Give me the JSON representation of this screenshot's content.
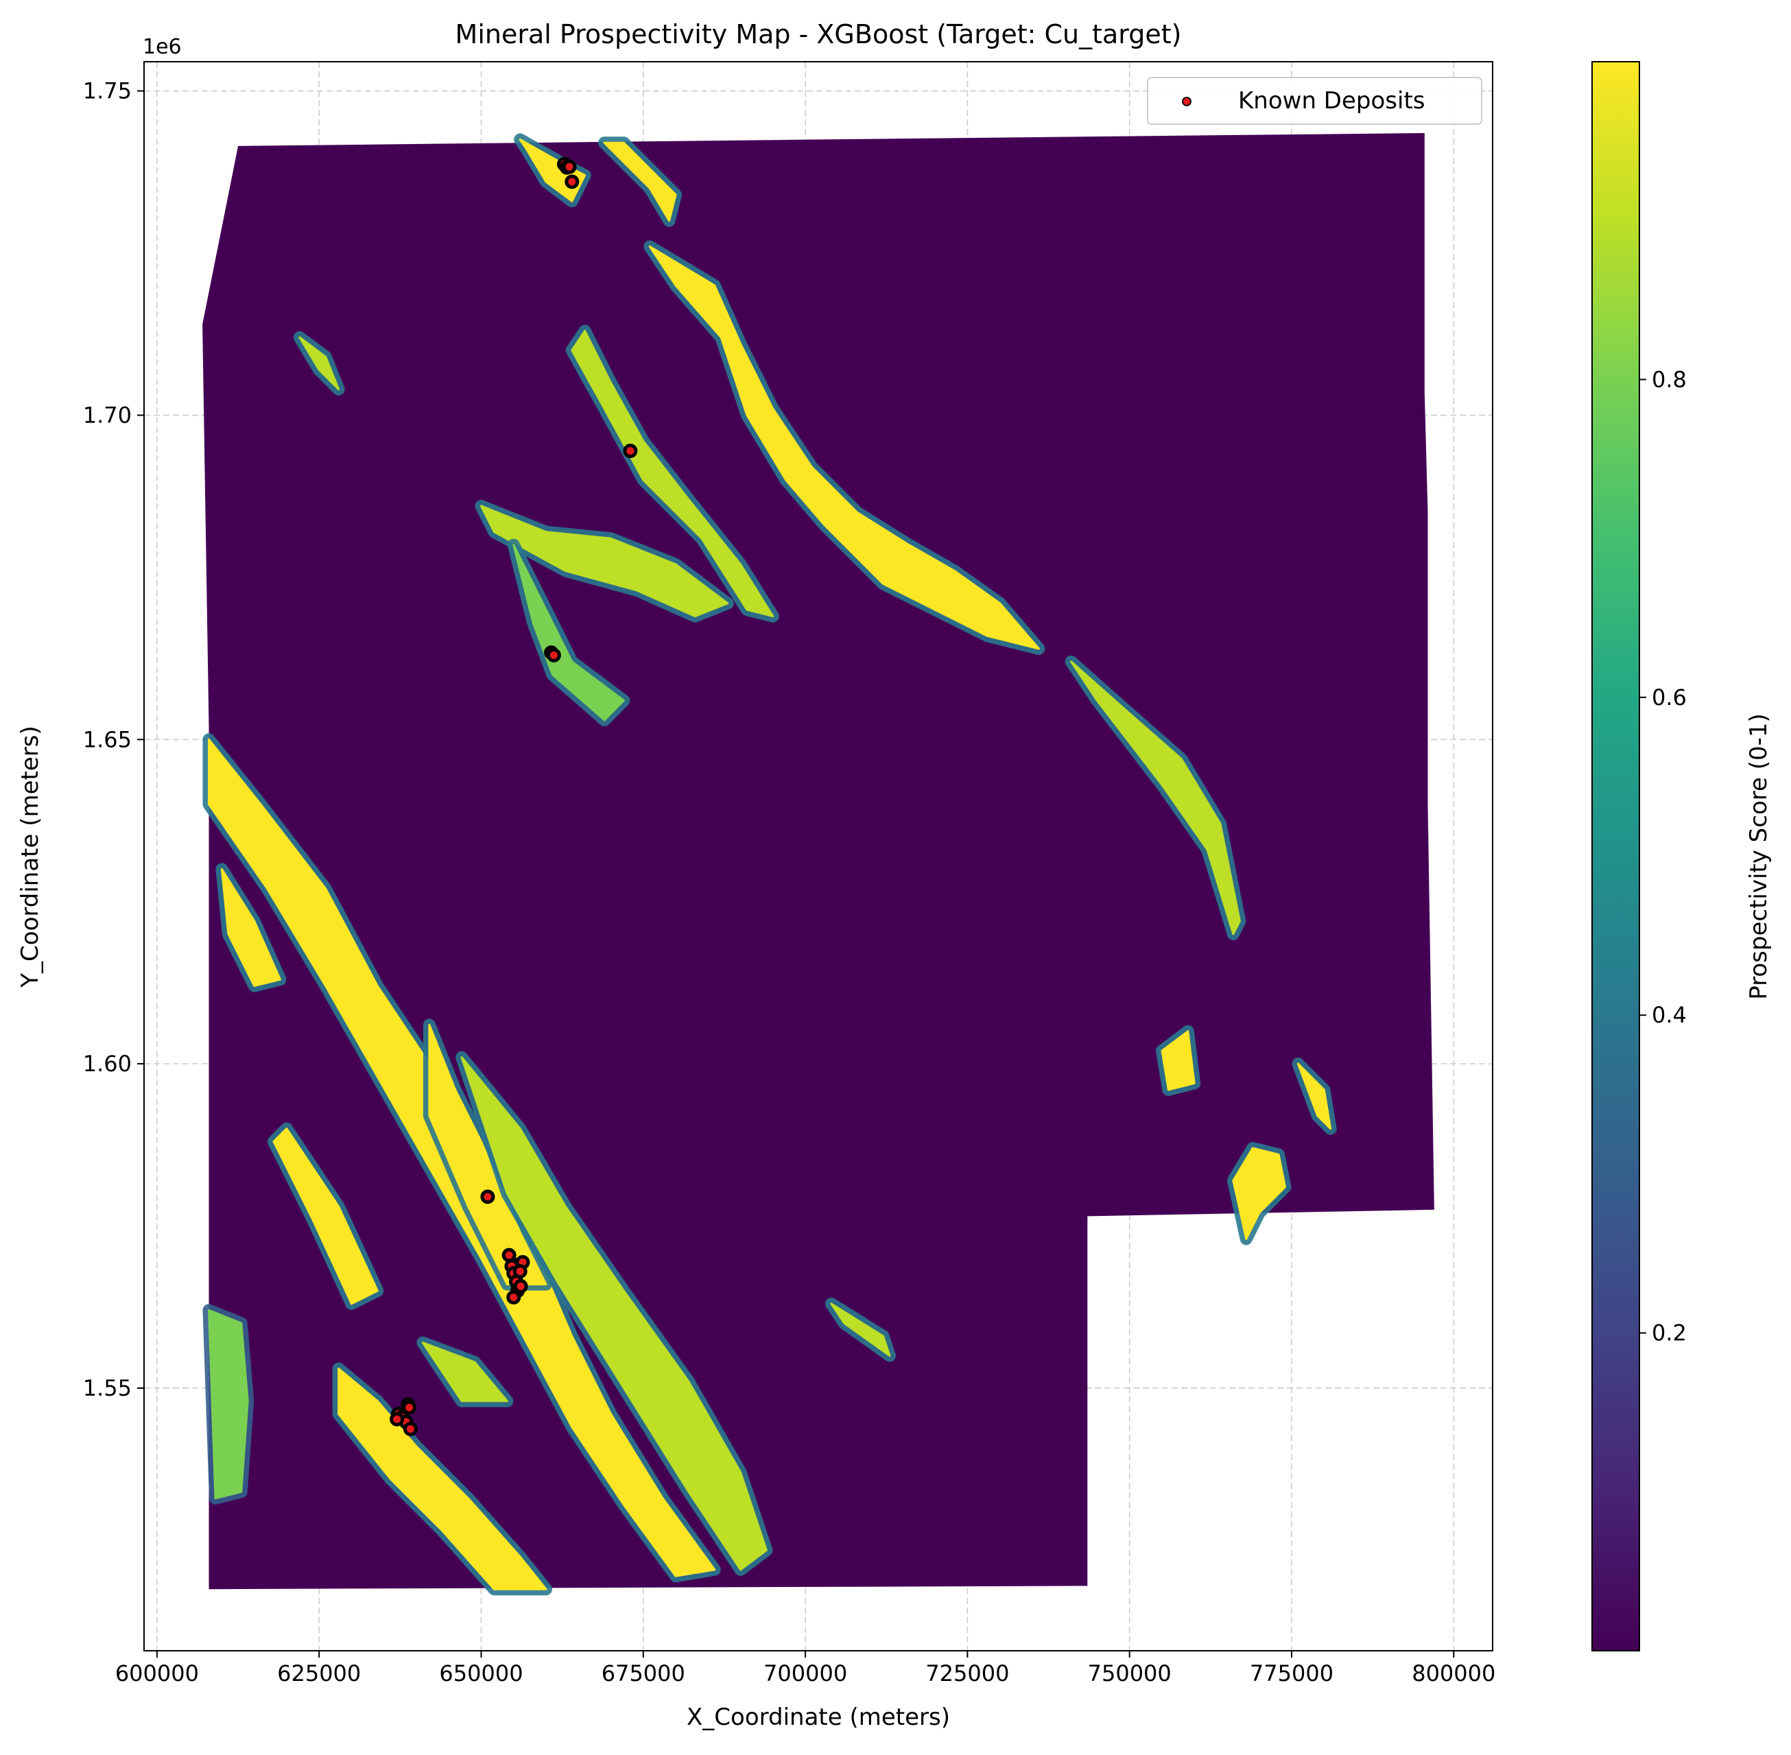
{
  "chart_data": {
    "type": "heatmap",
    "title": "Mineral Prospectivity Map - XGBoost (Target: Cu_target)",
    "xlabel": "X_Coordinate (meters)",
    "ylabel": "Y_Coordinate (meters)",
    "y_offset_label": "1e6",
    "xlim": [
      598000,
      806000
    ],
    "ylim": [
      1.5095,
      1.7545
    ],
    "x_ticks": [
      600000,
      625000,
      650000,
      675000,
      700000,
      725000,
      750000,
      775000,
      800000
    ],
    "x_tick_labels": [
      "600000",
      "625000",
      "650000",
      "675000",
      "700000",
      "725000",
      "750000",
      "775000",
      "800000"
    ],
    "y_ticks": [
      1.55,
      1.6,
      1.65,
      1.7,
      1.75
    ],
    "y_tick_labels": [
      "1.55",
      "1.60",
      "1.65",
      "1.70",
      "1.75"
    ],
    "grid": true,
    "legend": {
      "position": "top-right",
      "entries": [
        "Known Deposits"
      ]
    },
    "colorbar": {
      "label": "Prospectivity Score (0-1)",
      "colormap": "viridis",
      "range": [
        0.0,
        1.0
      ],
      "ticks": [
        0.2,
        0.4,
        0.6,
        0.8
      ],
      "tick_labels": [
        "0.2",
        "0.4",
        "0.6",
        "0.8"
      ]
    },
    "colors": {
      "background_low": "#440154",
      "high": "#fde725",
      "deposit_fill": "#e31a1c",
      "deposit_edge": "#000000",
      "grid": "#cccccc"
    },
    "study_area_outline": [
      [
        612500,
        1.7415
      ],
      [
        701000,
        1.7425
      ],
      [
        795500,
        1.7435
      ],
      [
        795500,
        1.7035
      ],
      [
        796000,
        1.685
      ],
      [
        796000,
        1.64
      ],
      [
        797000,
        1.5775
      ],
      [
        743500,
        1.5765
      ],
      [
        743500,
        1.5195
      ],
      [
        608000,
        1.519
      ],
      [
        608000,
        1.652
      ],
      [
        607000,
        1.714
      ]
    ],
    "high_prospectivity_zones": [
      {
        "score": 0.95,
        "path": [
          [
            656000,
            1.7425
          ],
          [
            664000,
            1.738
          ],
          [
            666000,
            1.737
          ],
          [
            664000,
            1.733
          ],
          [
            660000,
            1.736
          ],
          [
            657000,
            1.741
          ]
        ]
      },
      {
        "score": 0.95,
        "path": [
          [
            669000,
            1.742
          ],
          [
            676000,
            1.735
          ],
          [
            679000,
            1.73
          ],
          [
            680000,
            1.734
          ],
          [
            672000,
            1.742
          ]
        ]
      },
      {
        "score": 0.95,
        "path": [
          [
            676000,
            1.726
          ],
          [
            686000,
            1.72
          ],
          [
            690000,
            1.711
          ],
          [
            695000,
            1.701
          ],
          [
            701000,
            1.692
          ],
          [
            708000,
            1.685
          ],
          [
            716000,
            1.68
          ],
          [
            723000,
            1.676
          ],
          [
            730000,
            1.671
          ],
          [
            736000,
            1.664
          ],
          [
            728000,
            1.666
          ],
          [
            720000,
            1.67
          ],
          [
            712000,
            1.674
          ],
          [
            703000,
            1.683
          ],
          [
            697000,
            1.69
          ],
          [
            691000,
            1.7
          ],
          [
            687000,
            1.712
          ],
          [
            680000,
            1.72
          ]
        ]
      },
      {
        "score": 0.9,
        "path": [
          [
            741000,
            1.662
          ],
          [
            750000,
            1.654
          ],
          [
            758000,
            1.647
          ],
          [
            764000,
            1.637
          ],
          [
            767000,
            1.622
          ],
          [
            766000,
            1.62
          ],
          [
            762000,
            1.633
          ],
          [
            755000,
            1.643
          ],
          [
            745000,
            1.656
          ]
        ]
      },
      {
        "score": 0.9,
        "path": [
          [
            666000,
            1.713
          ],
          [
            670000,
            1.705
          ],
          [
            675000,
            1.696
          ],
          [
            682000,
            1.687
          ],
          [
            690000,
            1.677
          ],
          [
            695000,
            1.669
          ],
          [
            691000,
            1.67
          ],
          [
            684000,
            1.681
          ],
          [
            675000,
            1.69
          ],
          [
            669000,
            1.701
          ],
          [
            664000,
            1.71
          ]
        ]
      },
      {
        "score": 0.85,
        "path": [
          [
            650000,
            1.686
          ],
          [
            660000,
            1.682
          ],
          [
            670000,
            1.681
          ],
          [
            680000,
            1.677
          ],
          [
            688000,
            1.671
          ],
          [
            683000,
            1.669
          ],
          [
            674000,
            1.673
          ],
          [
            663000,
            1.676
          ],
          [
            652000,
            1.682
          ]
        ]
      },
      {
        "score": 0.8,
        "path": [
          [
            655000,
            1.68
          ],
          [
            658000,
            1.668
          ],
          [
            661000,
            1.66
          ],
          [
            669000,
            1.653
          ],
          [
            672000,
            1.656
          ],
          [
            664000,
            1.662
          ],
          [
            659000,
            1.672
          ]
        ]
      },
      {
        "score": 0.95,
        "path": [
          [
            608000,
            1.65
          ],
          [
            616000,
            1.64
          ],
          [
            626000,
            1.627
          ],
          [
            634000,
            1.612
          ],
          [
            642000,
            1.6
          ],
          [
            650000,
            1.586
          ],
          [
            658000,
            1.572
          ],
          [
            664000,
            1.558
          ],
          [
            670000,
            1.546
          ],
          [
            678000,
            1.533
          ],
          [
            686000,
            1.522
          ],
          [
            680000,
            1.521
          ],
          [
            672000,
            1.532
          ],
          [
            664000,
            1.544
          ],
          [
            657000,
            1.557
          ],
          [
            650000,
            1.57
          ],
          [
            642000,
            1.584
          ],
          [
            634000,
            1.598
          ],
          [
            626000,
            1.612
          ],
          [
            617000,
            1.627
          ],
          [
            608000,
            1.64
          ]
        ]
      },
      {
        "score": 0.95,
        "path": [
          [
            642000,
            1.606
          ],
          [
            646000,
            1.596
          ],
          [
            650000,
            1.588
          ],
          [
            656000,
            1.574
          ],
          [
            660000,
            1.566
          ],
          [
            654000,
            1.566
          ],
          [
            648000,
            1.578
          ],
          [
            642000,
            1.592
          ]
        ]
      },
      {
        "score": 0.9,
        "path": [
          [
            647000,
            1.601
          ],
          [
            656000,
            1.59
          ],
          [
            663000,
            1.578
          ],
          [
            672000,
            1.565
          ],
          [
            682000,
            1.551
          ],
          [
            690000,
            1.537
          ],
          [
            694000,
            1.525
          ],
          [
            690000,
            1.522
          ],
          [
            682000,
            1.534
          ],
          [
            672000,
            1.55
          ],
          [
            662000,
            1.566
          ],
          [
            654000,
            1.58
          ]
        ]
      },
      {
        "score": 0.95,
        "path": [
          [
            628000,
            1.553
          ],
          [
            634000,
            1.548
          ],
          [
            640000,
            1.541
          ],
          [
            648000,
            1.533
          ],
          [
            656000,
            1.524
          ],
          [
            660000,
            1.519
          ],
          [
            652000,
            1.519
          ],
          [
            644000,
            1.528
          ],
          [
            636000,
            1.536
          ],
          [
            628000,
            1.546
          ]
        ]
      },
      {
        "score": 0.75,
        "path": [
          [
            608000,
            1.562
          ],
          [
            613000,
            1.56
          ],
          [
            614000,
            1.548
          ],
          [
            613000,
            1.534
          ],
          [
            609000,
            1.533
          ]
        ]
      },
      {
        "score": 0.95,
        "path": [
          [
            610000,
            1.63
          ],
          [
            615000,
            1.622
          ],
          [
            619000,
            1.613
          ],
          [
            615000,
            1.612
          ],
          [
            611000,
            1.62
          ]
        ]
      },
      {
        "score": 0.95,
        "path": [
          [
            620000,
            1.59
          ],
          [
            628000,
            1.578
          ],
          [
            634000,
            1.565
          ],
          [
            630000,
            1.563
          ],
          [
            624000,
            1.576
          ],
          [
            618000,
            1.588
          ]
        ]
      },
      {
        "score": 0.9,
        "path": [
          [
            641000,
            1.557
          ],
          [
            649000,
            1.554
          ],
          [
            654000,
            1.548
          ],
          [
            647000,
            1.548
          ]
        ]
      },
      {
        "score": 0.95,
        "path": [
          [
            766000,
            1.582
          ],
          [
            768000,
            1.573
          ],
          [
            770000,
            1.577
          ],
          [
            774000,
            1.581
          ],
          [
            773000,
            1.586
          ],
          [
            769000,
            1.587
          ]
        ]
      },
      {
        "score": 0.95,
        "path": [
          [
            776000,
            1.6
          ],
          [
            779000,
            1.592
          ],
          [
            781000,
            1.59
          ],
          [
            780000,
            1.596
          ]
        ]
      },
      {
        "score": 0.95,
        "path": [
          [
            755000,
            1.602
          ],
          [
            759000,
            1.605
          ],
          [
            760000,
            1.597
          ],
          [
            756000,
            1.596
          ]
        ]
      },
      {
        "score": 0.9,
        "path": [
          [
            704000,
            1.563
          ],
          [
            712000,
            1.558
          ],
          [
            713000,
            1.555
          ],
          [
            706000,
            1.56
          ]
        ]
      },
      {
        "score": 0.85,
        "path": [
          [
            622000,
            1.712
          ],
          [
            625000,
            1.707
          ],
          [
            628000,
            1.704
          ],
          [
            626000,
            1.709
          ]
        ]
      }
    ],
    "known_deposits": [
      {
        "x": 662800,
        "y": 1.7387
      },
      {
        "x": 663200,
        "y": 1.7382
      },
      {
        "x": 664000,
        "y": 1.736
      },
      {
        "x": 663600,
        "y": 1.7383
      },
      {
        "x": 673000,
        "y": 1.6945
      },
      {
        "x": 660800,
        "y": 1.6634
      },
      {
        "x": 661200,
        "y": 1.663
      },
      {
        "x": 651000,
        "y": 1.5795
      },
      {
        "x": 654300,
        "y": 1.5705
      },
      {
        "x": 655200,
        "y": 1.569
      },
      {
        "x": 654700,
        "y": 1.5688
      },
      {
        "x": 656400,
        "y": 1.5694
      },
      {
        "x": 655000,
        "y": 1.5677
      },
      {
        "x": 656000,
        "y": 1.568
      },
      {
        "x": 655400,
        "y": 1.5664
      },
      {
        "x": 655600,
        "y": 1.565
      },
      {
        "x": 655000,
        "y": 1.564
      },
      {
        "x": 656100,
        "y": 1.5657
      },
      {
        "x": 637200,
        "y": 1.546
      },
      {
        "x": 638700,
        "y": 1.5475
      },
      {
        "x": 637800,
        "y": 1.5455
      },
      {
        "x": 638400,
        "y": 1.5448
      },
      {
        "x": 639100,
        "y": 1.5437
      },
      {
        "x": 637000,
        "y": 1.5452
      },
      {
        "x": 638900,
        "y": 1.547
      }
    ]
  }
}
